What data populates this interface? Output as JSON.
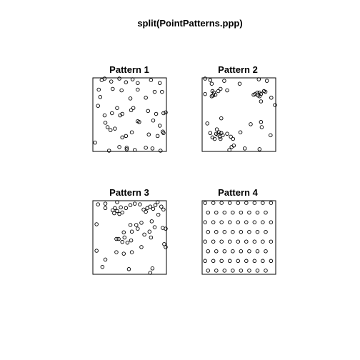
{
  "title": "split(PointPatterns.ppp)",
  "chart_data": {
    "type": "scatter",
    "title": "split(PointPatterns.ppp)",
    "axes": "none",
    "grid": false,
    "legend": "none",
    "layout": "2x2",
    "xlim": [
      0,
      1
    ],
    "ylim": [
      0,
      1
    ],
    "marker": "open-circle",
    "panels": [
      {
        "title": "Pattern 1",
        "points": [
          [
            0.12,
            0.97
          ],
          [
            0.16,
            0.99
          ],
          [
            0.36,
            0.99
          ],
          [
            0.54,
            0.98
          ],
          [
            0.79,
            0.97
          ],
          [
            0.25,
            0.95
          ],
          [
            0.45,
            0.94
          ],
          [
            0.61,
            0.93
          ],
          [
            0.91,
            0.93
          ],
          [
            0.08,
            0.84
          ],
          [
            0.27,
            0.85
          ],
          [
            0.39,
            0.83
          ],
          [
            0.61,
            0.84
          ],
          [
            0.84,
            0.81
          ],
          [
            0.94,
            0.81
          ],
          [
            0.1,
            0.74
          ],
          [
            0.51,
            0.72
          ],
          [
            0.72,
            0.73
          ],
          [
            0.07,
            0.62
          ],
          [
            0.33,
            0.59
          ],
          [
            0.52,
            0.56
          ],
          [
            0.55,
            0.59
          ],
          [
            0.75,
            0.55
          ],
          [
            0.86,
            0.51
          ],
          [
            0.96,
            0.52
          ],
          [
            0.16,
            0.49
          ],
          [
            0.26,
            0.52
          ],
          [
            0.37,
            0.49
          ],
          [
            0.4,
            0.51
          ],
          [
            0.61,
            0.41
          ],
          [
            0.63,
            0.4
          ],
          [
            0.82,
            0.42
          ],
          [
            0.99,
            0.53
          ],
          [
            0.17,
            0.39
          ],
          [
            0.2,
            0.33
          ],
          [
            0.3,
            0.31
          ],
          [
            0.91,
            0.35
          ],
          [
            0.96,
            0.25
          ],
          [
            0.24,
            0.29
          ],
          [
            0.4,
            0.19
          ],
          [
            0.45,
            0.21
          ],
          [
            0.53,
            0.26
          ],
          [
            0.76,
            0.23
          ],
          [
            0.88,
            0.21
          ],
          [
            0.95,
            0.27
          ],
          [
            0.03,
            0.12
          ],
          [
            0.22,
            0.01
          ],
          [
            0.46,
            0.05
          ],
          [
            0.57,
            0.02
          ],
          [
            0.72,
            0.05
          ],
          [
            0.81,
            0.04
          ],
          [
            0.92,
            0.01
          ],
          [
            0.36,
            0.06
          ],
          [
            0.46,
            0.03
          ]
        ]
      },
      {
        "title": "Pattern 2",
        "points": [
          [
            0.04,
            0.99
          ],
          [
            0.11,
            0.97
          ],
          [
            0.13,
            0.92
          ],
          [
            0.3,
            0.96
          ],
          [
            0.04,
            0.78
          ],
          [
            0.13,
            0.75
          ],
          [
            0.15,
            0.76
          ],
          [
            0.18,
            0.77
          ],
          [
            0.16,
            0.8
          ],
          [
            0.14,
            0.82
          ],
          [
            0.22,
            0.82
          ],
          [
            0.25,
            0.85
          ],
          [
            0.34,
            0.83
          ],
          [
            0.51,
            0.92
          ],
          [
            0.77,
            0.98
          ],
          [
            0.88,
            0.96
          ],
          [
            0.7,
            0.77
          ],
          [
            0.72,
            0.78
          ],
          [
            0.75,
            0.8
          ],
          [
            0.76,
            0.76
          ],
          [
            0.78,
            0.8
          ],
          [
            0.8,
            0.78
          ],
          [
            0.84,
            0.82
          ],
          [
            0.86,
            0.81
          ],
          [
            0.94,
            0.73
          ],
          [
            0.8,
            0.68
          ],
          [
            0.99,
            0.63
          ],
          [
            0.78,
            0.75
          ],
          [
            0.26,
            0.45
          ],
          [
            0.07,
            0.38
          ],
          [
            0.8,
            0.4
          ],
          [
            0.81,
            0.33
          ],
          [
            0.93,
            0.22
          ],
          [
            0.66,
            0.37
          ],
          [
            0.52,
            0.26
          ],
          [
            0.2,
            0.3
          ],
          [
            0.19,
            0.24
          ],
          [
            0.21,
            0.23
          ],
          [
            0.23,
            0.26
          ],
          [
            0.24,
            0.2
          ],
          [
            0.26,
            0.25
          ],
          [
            0.28,
            0.22
          ],
          [
            0.25,
            0.17
          ],
          [
            0.17,
            0.17
          ],
          [
            0.14,
            0.19
          ],
          [
            0.11,
            0.25
          ],
          [
            0.34,
            0.24
          ],
          [
            0.39,
            0.2
          ],
          [
            0.42,
            0.17
          ],
          [
            0.43,
            0.08
          ],
          [
            0.37,
            0.02
          ],
          [
            0.4,
            0.06
          ],
          [
            0.58,
            0.04
          ],
          [
            0.78,
            0.03
          ]
        ]
      },
      {
        "title": "Pattern 3",
        "points": [
          [
            0.07,
            0.95
          ],
          [
            0.17,
            0.96
          ],
          [
            0.33,
            0.98
          ],
          [
            0.38,
            0.91
          ],
          [
            0.45,
            0.9
          ],
          [
            0.51,
            0.94
          ],
          [
            0.57,
            0.96
          ],
          [
            0.64,
            0.95
          ],
          [
            0.69,
            0.88
          ],
          [
            0.72,
            0.85
          ],
          [
            0.74,
            0.9
          ],
          [
            0.78,
            0.92
          ],
          [
            0.82,
            0.89
          ],
          [
            0.85,
            0.94
          ],
          [
            0.88,
            0.98
          ],
          [
            0.93,
            0.92
          ],
          [
            0.96,
            0.88
          ],
          [
            0.17,
            0.9
          ],
          [
            0.27,
            0.87
          ],
          [
            0.3,
            0.9
          ],
          [
            0.33,
            0.86
          ],
          [
            0.36,
            0.82
          ],
          [
            0.4,
            0.84
          ],
          [
            0.29,
            0.83
          ],
          [
            0.51,
            0.67
          ],
          [
            0.59,
            0.67
          ],
          [
            0.66,
            0.7
          ],
          [
            0.8,
            0.72
          ],
          [
            0.89,
            0.81
          ],
          [
            0.05,
            0.68
          ],
          [
            0.42,
            0.57
          ],
          [
            0.53,
            0.58
          ],
          [
            0.61,
            0.62
          ],
          [
            0.7,
            0.54
          ],
          [
            0.77,
            0.58
          ],
          [
            0.84,
            0.64
          ],
          [
            0.99,
            0.62
          ],
          [
            0.35,
            0.48
          ],
          [
            0.4,
            0.44
          ],
          [
            0.43,
            0.5
          ],
          [
            0.32,
            0.48
          ],
          [
            0.52,
            0.46
          ],
          [
            0.47,
            0.43
          ],
          [
            0.66,
            0.37
          ],
          [
            0.79,
            0.5
          ],
          [
            0.99,
            0.37
          ],
          [
            0.32,
            0.3
          ],
          [
            0.42,
            0.28
          ],
          [
            0.53,
            0.3
          ],
          [
            0.05,
            0.32
          ],
          [
            0.17,
            0.2
          ],
          [
            0.13,
            0.1
          ],
          [
            0.49,
            0.07
          ],
          [
            0.81,
            0.08
          ],
          [
            0.78,
            0.02
          ],
          [
            0.97,
            0.41
          ],
          [
            0.95,
            0.63
          ]
        ]
      },
      {
        "title": "Pattern 4",
        "points": "regular-hex-grid"
      }
    ]
  }
}
